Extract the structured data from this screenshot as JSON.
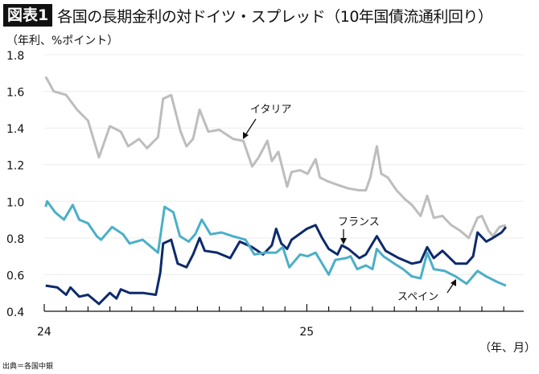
{
  "header": {
    "badge": "図表1",
    "title": "各国の長期金利の対ドイツ・スプレッド（10年国債流通利回り）"
  },
  "source": "出典＝各国中銀",
  "chart_data": {
    "type": "line",
    "title": "各国の長期金利の対ドイツ・スプレッド（10年国債流通利回り）",
    "ylabel": "（年利、%ポイント）",
    "xlabel": "（年、月）",
    "ylim": [
      0.4,
      1.8
    ],
    "yticks": [
      "0.4",
      "0.6",
      "0.8",
      "1.0",
      "1.2",
      "1.4",
      "1.6",
      "1.8"
    ],
    "xlim": [
      "2024-01-01",
      "2025-10-25"
    ],
    "xtick_labels": [
      {
        "date": "2024-01-01",
        "label": "24"
      },
      {
        "date": "2025-01-01",
        "label": "25"
      }
    ],
    "xtick_interval": "month",
    "grid": true,
    "legend": "inline labels",
    "series": [
      {
        "name": "イタリア",
        "color": "#bdbdbd",
        "points": [
          [
            "2024-01-03",
            1.68
          ],
          [
            "2024-01-14",
            1.6
          ],
          [
            "2024-02-01",
            1.58
          ],
          [
            "2024-02-16",
            1.5
          ],
          [
            "2024-03-01",
            1.44
          ],
          [
            "2024-03-16",
            1.24
          ],
          [
            "2024-04-01",
            1.41
          ],
          [
            "2024-04-16",
            1.38
          ],
          [
            "2024-04-26",
            1.3
          ],
          [
            "2024-05-11",
            1.34
          ],
          [
            "2024-05-22",
            1.29
          ],
          [
            "2024-06-07",
            1.35
          ],
          [
            "2024-06-14",
            1.56
          ],
          [
            "2024-06-25",
            1.58
          ],
          [
            "2024-07-08",
            1.38
          ],
          [
            "2024-07-16",
            1.3
          ],
          [
            "2024-07-25",
            1.34
          ],
          [
            "2024-08-04",
            1.5
          ],
          [
            "2024-08-16",
            1.38
          ],
          [
            "2024-09-01",
            1.39
          ],
          [
            "2024-09-20",
            1.34
          ],
          [
            "2024-10-04",
            1.33
          ],
          [
            "2024-10-16",
            1.19
          ],
          [
            "2024-10-25",
            1.24
          ],
          [
            "2024-11-07",
            1.33
          ],
          [
            "2024-11-13",
            1.22
          ],
          [
            "2024-11-22",
            1.27
          ],
          [
            "2024-12-04",
            1.08
          ],
          [
            "2024-12-10",
            1.16
          ],
          [
            "2024-12-22",
            1.17
          ],
          [
            "2025-01-02",
            1.15
          ],
          [
            "2025-01-13",
            1.23
          ],
          [
            "2025-01-19",
            1.13
          ],
          [
            "2025-01-29",
            1.11
          ],
          [
            "2025-02-13",
            1.09
          ],
          [
            "2025-02-28",
            1.07
          ],
          [
            "2025-03-13",
            1.06
          ],
          [
            "2025-03-22",
            1.06
          ],
          [
            "2025-03-28",
            1.13
          ],
          [
            "2025-04-07",
            1.3
          ],
          [
            "2025-04-13",
            1.15
          ],
          [
            "2025-04-22",
            1.13
          ],
          [
            "2025-05-04",
            1.06
          ],
          [
            "2025-05-16",
            1.01
          ],
          [
            "2025-05-25",
            0.98
          ],
          [
            "2025-06-07",
            0.92
          ],
          [
            "2025-06-16",
            1.03
          ],
          [
            "2025-06-25",
            0.91
          ],
          [
            "2025-07-07",
            0.92
          ],
          [
            "2025-07-19",
            0.87
          ],
          [
            "2025-08-01",
            0.84
          ],
          [
            "2025-08-13",
            0.8
          ],
          [
            "2025-08-25",
            0.91
          ],
          [
            "2025-09-01",
            0.92
          ],
          [
            "2025-09-10",
            0.84
          ],
          [
            "2025-09-16",
            0.81
          ],
          [
            "2025-09-25",
            0.86
          ],
          [
            "2025-10-04",
            0.87
          ]
        ]
      },
      {
        "name": "フランス",
        "color": "#0d2a6b",
        "points": [
          [
            "2024-01-03",
            0.54
          ],
          [
            "2024-01-19",
            0.53
          ],
          [
            "2024-02-01",
            0.49
          ],
          [
            "2024-02-07",
            0.53
          ],
          [
            "2024-02-19",
            0.48
          ],
          [
            "2024-03-01",
            0.49
          ],
          [
            "2024-03-16",
            0.44
          ],
          [
            "2024-04-01",
            0.5
          ],
          [
            "2024-04-10",
            0.47
          ],
          [
            "2024-04-16",
            0.52
          ],
          [
            "2024-04-28",
            0.5
          ],
          [
            "2024-05-16",
            0.5
          ],
          [
            "2024-06-04",
            0.49
          ],
          [
            "2024-06-10",
            0.61
          ],
          [
            "2024-06-14",
            0.77
          ],
          [
            "2024-06-25",
            0.79
          ],
          [
            "2024-07-04",
            0.66
          ],
          [
            "2024-07-16",
            0.64
          ],
          [
            "2024-07-25",
            0.71
          ],
          [
            "2024-08-04",
            0.8
          ],
          [
            "2024-08-11",
            0.73
          ],
          [
            "2024-08-28",
            0.72
          ],
          [
            "2024-09-16",
            0.69
          ],
          [
            "2024-09-29",
            0.78
          ],
          [
            "2024-10-16",
            0.75
          ],
          [
            "2024-11-01",
            0.71
          ],
          [
            "2024-11-13",
            0.76
          ],
          [
            "2024-11-19",
            0.85
          ],
          [
            "2024-11-26",
            0.77
          ],
          [
            "2024-12-04",
            0.74
          ],
          [
            "2024-12-10",
            0.79
          ],
          [
            "2025-01-01",
            0.85
          ],
          [
            "2025-01-13",
            0.87
          ],
          [
            "2025-01-22",
            0.8
          ],
          [
            "2025-02-01",
            0.74
          ],
          [
            "2025-02-13",
            0.71
          ],
          [
            "2025-02-19",
            0.76
          ],
          [
            "2025-02-28",
            0.74
          ],
          [
            "2025-03-13",
            0.69
          ],
          [
            "2025-03-22",
            0.71
          ],
          [
            "2025-04-07",
            0.81
          ],
          [
            "2025-04-19",
            0.73
          ],
          [
            "2025-05-07",
            0.69
          ],
          [
            "2025-05-25",
            0.66
          ],
          [
            "2025-06-07",
            0.67
          ],
          [
            "2025-06-16",
            0.75
          ],
          [
            "2025-06-25",
            0.69
          ],
          [
            "2025-07-07",
            0.73
          ],
          [
            "2025-07-25",
            0.66
          ],
          [
            "2025-08-10",
            0.66
          ],
          [
            "2025-08-19",
            0.7
          ],
          [
            "2025-08-25",
            0.83
          ],
          [
            "2025-09-07",
            0.78
          ],
          [
            "2025-09-16",
            0.8
          ],
          [
            "2025-09-28",
            0.83
          ],
          [
            "2025-10-04",
            0.86
          ]
        ]
      },
      {
        "name": "スペイン",
        "color": "#4bafc8",
        "points": [
          [
            "2024-01-03",
            0.97
          ],
          [
            "2024-01-05",
            1.0
          ],
          [
            "2024-01-16",
            0.94
          ],
          [
            "2024-01-28",
            0.9
          ],
          [
            "2024-02-10",
            0.98
          ],
          [
            "2024-02-19",
            0.9
          ],
          [
            "2024-03-01",
            0.88
          ],
          [
            "2024-03-13",
            0.81
          ],
          [
            "2024-03-19",
            0.79
          ],
          [
            "2024-04-04",
            0.86
          ],
          [
            "2024-04-19",
            0.82
          ],
          [
            "2024-04-28",
            0.77
          ],
          [
            "2024-05-16",
            0.79
          ],
          [
            "2024-05-28",
            0.75
          ],
          [
            "2024-06-07",
            0.72
          ],
          [
            "2024-06-16",
            0.97
          ],
          [
            "2024-06-28",
            0.94
          ],
          [
            "2024-07-07",
            0.81
          ],
          [
            "2024-07-19",
            0.78
          ],
          [
            "2024-07-28",
            0.82
          ],
          [
            "2024-08-07",
            0.9
          ],
          [
            "2024-08-19",
            0.82
          ],
          [
            "2024-09-04",
            0.83
          ],
          [
            "2024-09-19",
            0.81
          ],
          [
            "2024-10-07",
            0.79
          ],
          [
            "2024-10-19",
            0.71
          ],
          [
            "2024-11-04",
            0.72
          ],
          [
            "2024-11-19",
            0.72
          ],
          [
            "2024-11-28",
            0.75
          ],
          [
            "2024-12-07",
            0.64
          ],
          [
            "2024-12-22",
            0.71
          ],
          [
            "2025-01-02",
            0.7
          ],
          [
            "2025-01-13",
            0.72
          ],
          [
            "2025-02-01",
            0.6
          ],
          [
            "2025-02-10",
            0.68
          ],
          [
            "2025-02-25",
            0.69
          ],
          [
            "2025-03-01",
            0.7
          ],
          [
            "2025-03-10",
            0.63
          ],
          [
            "2025-03-22",
            0.65
          ],
          [
            "2025-04-01",
            0.63
          ],
          [
            "2025-04-07",
            0.74
          ],
          [
            "2025-04-16",
            0.7
          ],
          [
            "2025-05-01",
            0.66
          ],
          [
            "2025-05-13",
            0.63
          ],
          [
            "2025-05-25",
            0.59
          ],
          [
            "2025-06-07",
            0.58
          ],
          [
            "2025-06-16",
            0.72
          ],
          [
            "2025-06-25",
            0.63
          ],
          [
            "2025-07-10",
            0.62
          ],
          [
            "2025-07-25",
            0.59
          ],
          [
            "2025-08-10",
            0.55
          ],
          [
            "2025-08-25",
            0.62
          ],
          [
            "2025-09-07",
            0.59
          ],
          [
            "2025-09-22",
            0.56
          ],
          [
            "2025-10-04",
            0.54
          ]
        ]
      }
    ]
  }
}
